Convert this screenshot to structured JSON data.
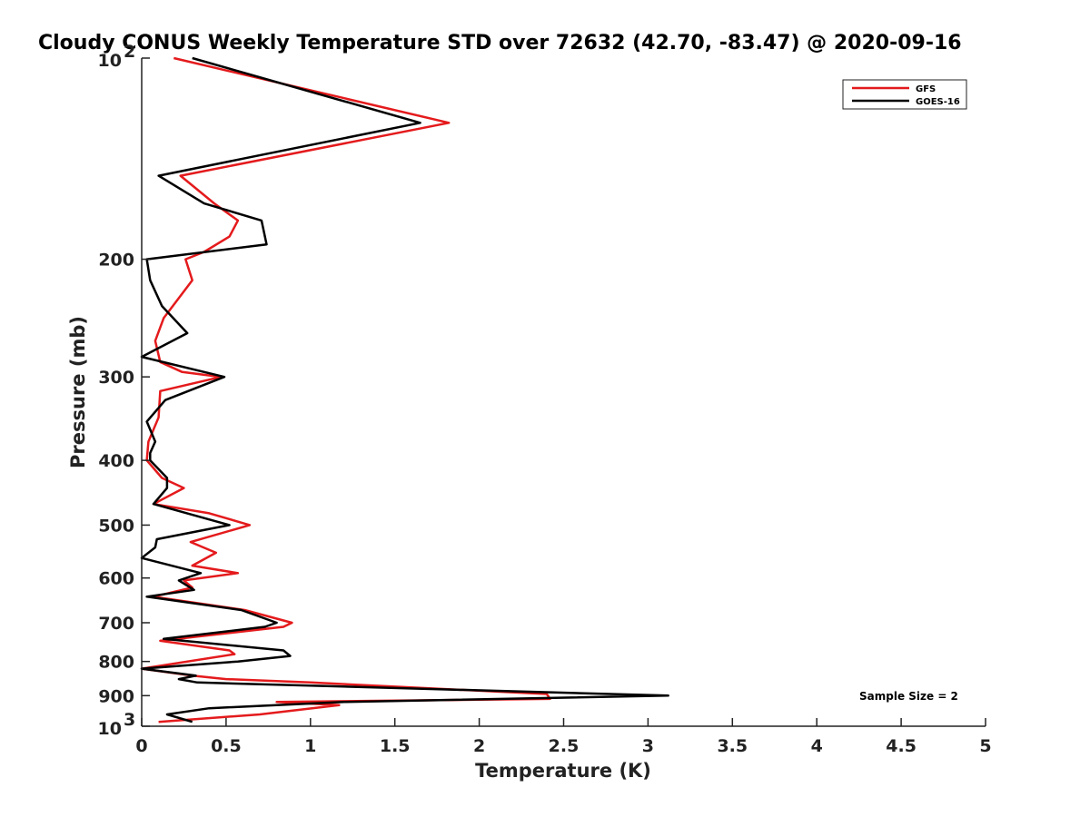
{
  "chart_data": {
    "type": "line",
    "title": "Cloudy CONUS Weekly Temperature STD over 72632 (42.70, -83.47) @ 2020-09-16",
    "xlabel": "Temperature (K)",
    "ylabel": "Pressure (mb)",
    "xlim": [
      0,
      5
    ],
    "ylim": [
      100,
      1000
    ],
    "yscale": "log",
    "y_reversed": true,
    "xticks": [
      0,
      0.5,
      1,
      1.5,
      2,
      2.5,
      3,
      3.5,
      4,
      4.5,
      5
    ],
    "xtick_labels": [
      "0",
      "0.5",
      "1",
      "1.5",
      "2",
      "2.5",
      "3",
      "3.5",
      "4",
      "4.5",
      "5"
    ],
    "yticks": [
      {
        "value": 100,
        "base": "10",
        "exp": "2"
      },
      {
        "value": 200,
        "label": "200"
      },
      {
        "value": 300,
        "label": "300"
      },
      {
        "value": 400,
        "label": "400"
      },
      {
        "value": 500,
        "label": "500"
      },
      {
        "value": 600,
        "label": "600"
      },
      {
        "value": 700,
        "label": "700"
      },
      {
        "value": 800,
        "label": "800"
      },
      {
        "value": 900,
        "label": "900"
      },
      {
        "value": 1000,
        "base": "10",
        "exp": "3"
      }
    ],
    "grid": false,
    "legend_position": "top-right",
    "series": [
      {
        "name": "GFS",
        "color": "#e41a1c",
        "points": [
          [
            0.19,
            100
          ],
          [
            1.82,
            125
          ],
          [
            0.23,
            150
          ],
          [
            0.43,
            165
          ],
          [
            0.57,
            175
          ],
          [
            0.52,
            185
          ],
          [
            0.37,
            195
          ],
          [
            0.26,
            200
          ],
          [
            0.3,
            215
          ],
          [
            0.13,
            245
          ],
          [
            0.08,
            265
          ],
          [
            0.11,
            285
          ],
          [
            0.24,
            295
          ],
          [
            0.47,
            300
          ],
          [
            0.11,
            315
          ],
          [
            0.1,
            345
          ],
          [
            0.04,
            375
          ],
          [
            0.03,
            400
          ],
          [
            0.12,
            425
          ],
          [
            0.25,
            440
          ],
          [
            0.07,
            465
          ],
          [
            0.4,
            480
          ],
          [
            0.64,
            500
          ],
          [
            0.29,
            530
          ],
          [
            0.44,
            550
          ],
          [
            0.3,
            575
          ],
          [
            0.57,
            590
          ],
          [
            0.25,
            605
          ],
          [
            0.3,
            620
          ],
          [
            0.07,
            640
          ],
          [
            0.61,
            670
          ],
          [
            0.89,
            700
          ],
          [
            0.84,
            710
          ],
          [
            0.11,
            745
          ],
          [
            0.52,
            770
          ],
          [
            0.55,
            780
          ],
          [
            0.0,
            820
          ],
          [
            0.3,
            840
          ],
          [
            0.5,
            850
          ],
          [
            1.0,
            860
          ],
          [
            2.4,
            895
          ],
          [
            2.42,
            910
          ],
          [
            0.8,
            920
          ],
          [
            1.17,
            930
          ],
          [
            0.7,
            960
          ],
          [
            0.1,
            985
          ]
        ]
      },
      {
        "name": "GOES-16",
        "color": "#000000",
        "points": [
          [
            0.3,
            100
          ],
          [
            1.65,
            125
          ],
          [
            0.1,
            150
          ],
          [
            0.37,
            165
          ],
          [
            0.71,
            175
          ],
          [
            0.74,
            190
          ],
          [
            0.03,
            200
          ],
          [
            0.05,
            215
          ],
          [
            0.12,
            235
          ],
          [
            0.27,
            258
          ],
          [
            0.0,
            280
          ],
          [
            0.49,
            300
          ],
          [
            0.14,
            325
          ],
          [
            0.03,
            350
          ],
          [
            0.08,
            375
          ],
          [
            0.05,
            390
          ],
          [
            0.05,
            400
          ],
          [
            0.15,
            425
          ],
          [
            0.15,
            440
          ],
          [
            0.07,
            465
          ],
          [
            0.52,
            500
          ],
          [
            0.09,
            525
          ],
          [
            0.08,
            540
          ],
          [
            0.0,
            560
          ],
          [
            0.35,
            590
          ],
          [
            0.22,
            605
          ],
          [
            0.31,
            625
          ],
          [
            0.03,
            640
          ],
          [
            0.59,
            670
          ],
          [
            0.8,
            700
          ],
          [
            0.73,
            710
          ],
          [
            0.13,
            740
          ],
          [
            0.84,
            770
          ],
          [
            0.88,
            785
          ],
          [
            0.57,
            800
          ],
          [
            0.0,
            820
          ],
          [
            0.32,
            840
          ],
          [
            0.22,
            850
          ],
          [
            0.33,
            860
          ],
          [
            3.12,
            900
          ],
          [
            1.2,
            920
          ],
          [
            0.4,
            940
          ],
          [
            0.15,
            960
          ],
          [
            0.3,
            985
          ]
        ]
      }
    ],
    "annotation": "Sample Size = 2"
  }
}
